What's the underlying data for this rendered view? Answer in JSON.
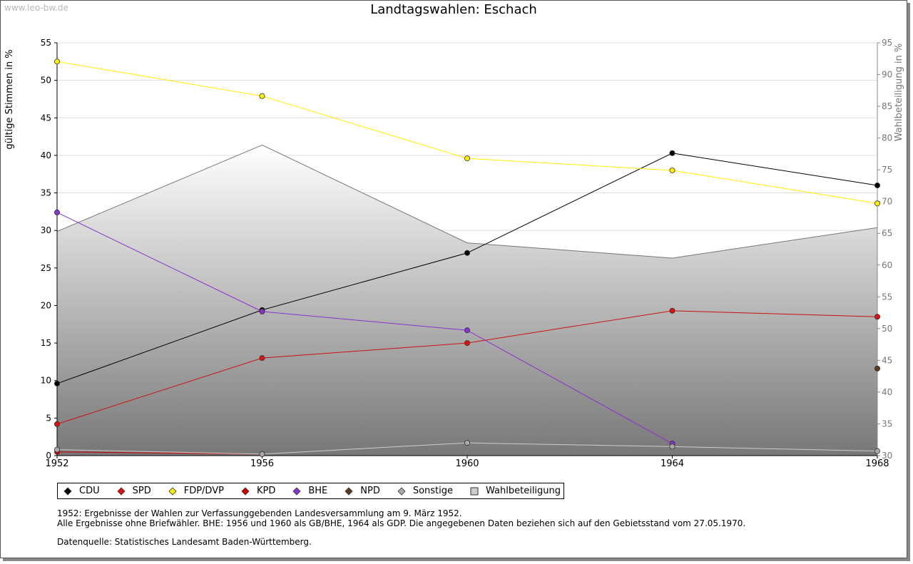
{
  "watermark": "www.leo-bw.de",
  "chart_data": {
    "type": "line",
    "title": "Landtagswahlen: Eschach",
    "ylabel": "gültige Stimmen in %",
    "y2label": "Wahlbeteiligung in %",
    "xlabel": "",
    "categories": [
      "1952",
      "1956",
      "1960",
      "1964",
      "1968"
    ],
    "ylim": [
      0,
      55
    ],
    "yticks": [
      0,
      5,
      10,
      15,
      20,
      25,
      30,
      35,
      40,
      45,
      50,
      55
    ],
    "y2lim": [
      30,
      95
    ],
    "y2ticks": [
      30,
      35,
      40,
      45,
      50,
      55,
      60,
      65,
      70,
      75,
      80,
      85,
      90,
      95
    ],
    "area": {
      "name": "Wahlbeteiligung",
      "axis": "right",
      "values": [
        65.3,
        78.9,
        63.5,
        61.1,
        65.9
      ]
    },
    "series": [
      {
        "name": "CDU",
        "color": "#000000",
        "line": "#000000",
        "values": [
          9.6,
          19.4,
          27.0,
          40.3,
          36.0
        ]
      },
      {
        "name": "SPD",
        "color": "#dd1111",
        "line": "#cc1111",
        "values": [
          4.2,
          13.0,
          15.0,
          19.3,
          18.5
        ]
      },
      {
        "name": "FDP/DVP",
        "color": "#ffee00",
        "line": "#ffee00",
        "values": [
          52.5,
          47.9,
          39.6,
          38.0,
          33.6
        ]
      },
      {
        "name": "KPD",
        "color": "#cc0000",
        "line": "#cc0000",
        "values": [
          0.5,
          0.2,
          null,
          null,
          null
        ]
      },
      {
        "name": "BHE",
        "color": "#8833cc",
        "line": "#8833cc",
        "values": [
          32.4,
          19.2,
          16.7,
          1.6,
          null
        ]
      },
      {
        "name": "NPD",
        "color": "#5a3a20",
        "line": "#5a3a20",
        "values": [
          null,
          null,
          null,
          null,
          11.6
        ]
      },
      {
        "name": "Sonstige",
        "color": "#aaaaaa",
        "line": "#cccccc",
        "values": [
          0.8,
          0.2,
          1.7,
          1.2,
          0.6
        ]
      }
    ],
    "legend": [
      "CDU",
      "SPD",
      "FDP/DVP",
      "KPD",
      "BHE",
      "NPD",
      "Sonstige",
      "Wahlbeteiligung"
    ]
  },
  "legend_colors": {
    "CDU": "#000000",
    "SPD": "#dd1111",
    "FDP/DVP": "#ffee00",
    "KPD": "#cc0000",
    "BHE": "#8833cc",
    "NPD": "#5a3a20",
    "Sonstige": "#aaaaaa",
    "Wahlbeteiligung": "#cccccc"
  },
  "notes": {
    "line1": "1952: Ergebnisse der Wahlen zur Verfassunggebenden Landesversammlung am 9. März 1952.",
    "line2": "Alle Ergebnisse ohne Briefwähler. BHE: 1956 und 1960 als GB/BHE, 1964 als GDP. Die angegebenen Daten beziehen sich auf den Gebietsstand vom 27.05.1970.",
    "source": "Datenquelle: Statistisches Landesamt Baden-Württemberg."
  }
}
